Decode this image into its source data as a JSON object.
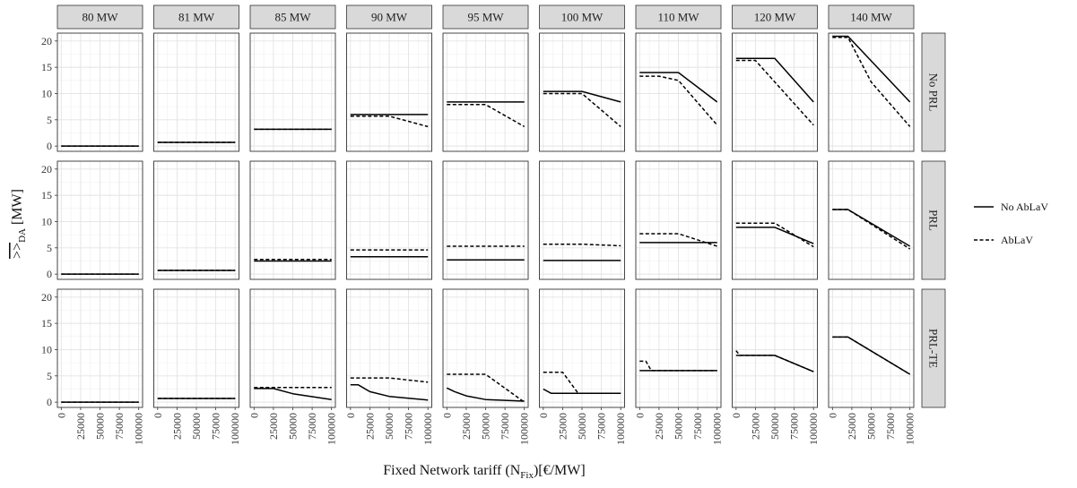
{
  "chart_data": {
    "type": "line",
    "facet_columns": [
      "80 MW",
      "81 MW",
      "85 MW",
      "90 MW",
      "95 MW",
      "100 MW",
      "110 MW",
      "120 MW",
      "140 MW"
    ],
    "facet_rows": [
      "No PRL",
      "PRL",
      "PRL-TE"
    ],
    "x_ticks": [
      0,
      25000,
      50000,
      75000,
      100000
    ],
    "x_tick_labels": [
      "0",
      "25000",
      "50000",
      "75000",
      "100000"
    ],
    "y_ticks": [
      0,
      5,
      10,
      15,
      20
    ],
    "y_tick_labels": [
      "0",
      "5",
      "10",
      "15",
      "20"
    ],
    "xlim": [
      -5000,
      105000
    ],
    "ylim": [
      -1,
      21.5
    ],
    "xlabel": {
      "main": "Fixed Network tariff (N",
      "sub": "Fix",
      "tail": ")[€/MW]"
    },
    "ylabel": {
      "main": ">>",
      "sub": "DA",
      "tail": " [MW]"
    },
    "legend": [
      {
        "label": "No AbLaV",
        "style": "solid"
      },
      {
        "label": "AbLaV",
        "style": "dashed"
      }
    ],
    "series": [
      {
        "row": 0,
        "col": 0,
        "ablav": false,
        "x": [
          0,
          100000
        ],
        "y": [
          0,
          0
        ]
      },
      {
        "row": 0,
        "col": 0,
        "ablav": true,
        "x": [
          0,
          100000
        ],
        "y": [
          0,
          0
        ]
      },
      {
        "row": 0,
        "col": 1,
        "ablav": false,
        "x": [
          0,
          100000
        ],
        "y": [
          0.7,
          0.7
        ]
      },
      {
        "row": 0,
        "col": 1,
        "ablav": true,
        "x": [
          0,
          100000
        ],
        "y": [
          0.7,
          0.7
        ]
      },
      {
        "row": 0,
        "col": 2,
        "ablav": false,
        "x": [
          0,
          100000
        ],
        "y": [
          3.2,
          3.2
        ]
      },
      {
        "row": 0,
        "col": 2,
        "ablav": true,
        "x": [
          0,
          100000
        ],
        "y": [
          3.2,
          3.2
        ]
      },
      {
        "row": 0,
        "col": 3,
        "ablav": false,
        "x": [
          0,
          100000
        ],
        "y": [
          6,
          6
        ]
      },
      {
        "row": 0,
        "col": 3,
        "ablav": true,
        "x": [
          0,
          50000,
          100000
        ],
        "y": [
          5.7,
          5.7,
          3.7
        ]
      },
      {
        "row": 0,
        "col": 4,
        "ablav": false,
        "x": [
          0,
          100000
        ],
        "y": [
          8.4,
          8.4
        ]
      },
      {
        "row": 0,
        "col": 4,
        "ablav": true,
        "x": [
          0,
          50000,
          100000
        ],
        "y": [
          7.9,
          7.9,
          3.7
        ]
      },
      {
        "row": 0,
        "col": 5,
        "ablav": false,
        "x": [
          0,
          50000,
          100000
        ],
        "y": [
          10.4,
          10.4,
          8.4
        ]
      },
      {
        "row": 0,
        "col": 5,
        "ablav": true,
        "x": [
          0,
          50000,
          100000
        ],
        "y": [
          10,
          10,
          3.7
        ]
      },
      {
        "row": 0,
        "col": 6,
        "ablav": false,
        "x": [
          0,
          50000,
          100000
        ],
        "y": [
          14,
          14,
          8.4
        ]
      },
      {
        "row": 0,
        "col": 6,
        "ablav": true,
        "x": [
          0,
          25000,
          50000,
          100000
        ],
        "y": [
          13.3,
          13.3,
          12.5,
          4
        ]
      },
      {
        "row": 0,
        "col": 7,
        "ablav": false,
        "x": [
          0,
          50000,
          100000
        ],
        "y": [
          16.7,
          16.7,
          8.4
        ]
      },
      {
        "row": 0,
        "col": 7,
        "ablav": true,
        "x": [
          0,
          25000,
          100000
        ],
        "y": [
          16.3,
          16.3,
          4
        ]
      },
      {
        "row": 0,
        "col": 8,
        "ablav": false,
        "x": [
          0,
          20000,
          100000
        ],
        "y": [
          20.9,
          20.9,
          8.4
        ]
      },
      {
        "row": 0,
        "col": 8,
        "ablav": true,
        "x": [
          0,
          20000,
          50000,
          100000
        ],
        "y": [
          20.7,
          20.7,
          12.2,
          3.7
        ]
      },
      {
        "row": 1,
        "col": 0,
        "ablav": false,
        "x": [
          0,
          100000
        ],
        "y": [
          0,
          0
        ]
      },
      {
        "row": 1,
        "col": 0,
        "ablav": true,
        "x": [
          0,
          100000
        ],
        "y": [
          0,
          0
        ]
      },
      {
        "row": 1,
        "col": 1,
        "ablav": false,
        "x": [
          0,
          100000
        ],
        "y": [
          0.7,
          0.7
        ]
      },
      {
        "row": 1,
        "col": 1,
        "ablav": true,
        "x": [
          0,
          100000
        ],
        "y": [
          0.7,
          0.7
        ]
      },
      {
        "row": 1,
        "col": 2,
        "ablav": false,
        "x": [
          0,
          100000
        ],
        "y": [
          2.5,
          2.5
        ]
      },
      {
        "row": 1,
        "col": 2,
        "ablav": true,
        "x": [
          0,
          100000
        ],
        "y": [
          2.8,
          2.8
        ]
      },
      {
        "row": 1,
        "col": 3,
        "ablav": false,
        "x": [
          0,
          100000
        ],
        "y": [
          3.3,
          3.3
        ]
      },
      {
        "row": 1,
        "col": 3,
        "ablav": true,
        "x": [
          0,
          100000
        ],
        "y": [
          4.6,
          4.6
        ]
      },
      {
        "row": 1,
        "col": 4,
        "ablav": false,
        "x": [
          0,
          100000
        ],
        "y": [
          2.7,
          2.7
        ]
      },
      {
        "row": 1,
        "col": 4,
        "ablav": true,
        "x": [
          0,
          100000
        ],
        "y": [
          5.3,
          5.3
        ]
      },
      {
        "row": 1,
        "col": 5,
        "ablav": false,
        "x": [
          0,
          100000
        ],
        "y": [
          2.6,
          2.6
        ]
      },
      {
        "row": 1,
        "col": 5,
        "ablav": true,
        "x": [
          0,
          50000,
          100000
        ],
        "y": [
          5.7,
          5.7,
          5.4
        ]
      },
      {
        "row": 1,
        "col": 6,
        "ablav": false,
        "x": [
          0,
          100000
        ],
        "y": [
          6,
          6
        ]
      },
      {
        "row": 1,
        "col": 6,
        "ablav": true,
        "x": [
          0,
          50000,
          100000
        ],
        "y": [
          7.7,
          7.7,
          5.3
        ]
      },
      {
        "row": 1,
        "col": 7,
        "ablav": false,
        "x": [
          0,
          50000,
          100000
        ],
        "y": [
          8.9,
          8.9,
          5.8
        ]
      },
      {
        "row": 1,
        "col": 7,
        "ablav": true,
        "x": [
          0,
          50000,
          100000
        ],
        "y": [
          9.7,
          9.7,
          5.2
        ]
      },
      {
        "row": 1,
        "col": 8,
        "ablav": false,
        "x": [
          0,
          20000,
          100000
        ],
        "y": [
          12.3,
          12.3,
          5.3
        ]
      },
      {
        "row": 1,
        "col": 8,
        "ablav": true,
        "x": [
          0,
          20000,
          100000
        ],
        "y": [
          12.3,
          12.3,
          4.8
        ]
      },
      {
        "row": 2,
        "col": 0,
        "ablav": false,
        "x": [
          0,
          100000
        ],
        "y": [
          0,
          0
        ]
      },
      {
        "row": 2,
        "col": 0,
        "ablav": true,
        "x": [
          0,
          100000
        ],
        "y": [
          0,
          0
        ]
      },
      {
        "row": 2,
        "col": 1,
        "ablav": false,
        "x": [
          0,
          100000
        ],
        "y": [
          0.7,
          0.7
        ]
      },
      {
        "row": 2,
        "col": 1,
        "ablav": true,
        "x": [
          0,
          100000
        ],
        "y": [
          0.7,
          0.7
        ]
      },
      {
        "row": 2,
        "col": 2,
        "ablav": false,
        "x": [
          0,
          25000,
          50000,
          100000
        ],
        "y": [
          2.6,
          2.6,
          1.6,
          0.5
        ]
      },
      {
        "row": 2,
        "col": 2,
        "ablav": true,
        "x": [
          0,
          100000
        ],
        "y": [
          2.8,
          2.8
        ]
      },
      {
        "row": 2,
        "col": 3,
        "ablav": false,
        "x": [
          0,
          10000,
          25000,
          50000,
          100000
        ],
        "y": [
          3.3,
          3.3,
          2.0,
          1.1,
          0.4
        ]
      },
      {
        "row": 2,
        "col": 3,
        "ablav": true,
        "x": [
          0,
          50000,
          100000
        ],
        "y": [
          4.6,
          4.6,
          3.8
        ]
      },
      {
        "row": 2,
        "col": 4,
        "ablav": false,
        "x": [
          0,
          10000,
          25000,
          50000,
          100000
        ],
        "y": [
          2.7,
          2.0,
          1.2,
          0.5,
          0.2
        ]
      },
      {
        "row": 2,
        "col": 4,
        "ablav": true,
        "x": [
          0,
          50000,
          100000
        ],
        "y": [
          5.3,
          5.3,
          0
        ]
      },
      {
        "row": 2,
        "col": 5,
        "ablav": false,
        "x": [
          0,
          10000,
          100000
        ],
        "y": [
          2.5,
          1.7,
          1.7
        ]
      },
      {
        "row": 2,
        "col": 5,
        "ablav": true,
        "x": [
          0,
          25000,
          45000,
          100000
        ],
        "y": [
          5.7,
          5.7,
          1.7,
          1.7
        ]
      },
      {
        "row": 2,
        "col": 6,
        "ablav": false,
        "x": [
          0,
          100000
        ],
        "y": [
          6,
          6
        ]
      },
      {
        "row": 2,
        "col": 6,
        "ablav": true,
        "x": [
          0,
          8000,
          15000,
          100000
        ],
        "y": [
          7.8,
          7.8,
          6,
          6
        ]
      },
      {
        "row": 2,
        "col": 7,
        "ablav": false,
        "x": [
          0,
          50000,
          100000
        ],
        "y": [
          8.9,
          8.9,
          5.8
        ]
      },
      {
        "row": 2,
        "col": 7,
        "ablav": true,
        "x": [
          0,
          5000,
          50000,
          100000
        ],
        "y": [
          9.8,
          8.9,
          8.9,
          5.8
        ]
      },
      {
        "row": 2,
        "col": 8,
        "ablav": false,
        "x": [
          0,
          20000,
          100000
        ],
        "y": [
          12.4,
          12.4,
          5.3
        ]
      },
      {
        "row": 2,
        "col": 8,
        "ablav": true,
        "x": [
          0,
          20000,
          100000
        ],
        "y": [
          12.4,
          12.4,
          5.3
        ]
      }
    ]
  }
}
